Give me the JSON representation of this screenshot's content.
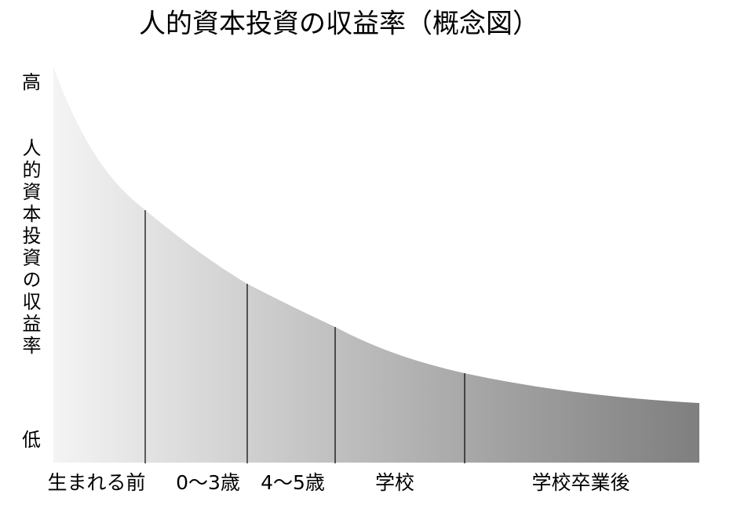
{
  "title": "人的資本投資の収益率（概念図）",
  "y_axis": {
    "label": "人的資本投資の収益率",
    "high": "高",
    "low": "低"
  },
  "stages": [
    "生まれる前",
    "0〜3歳",
    "4〜5歳",
    "学校",
    "学校卒業後"
  ]
}
